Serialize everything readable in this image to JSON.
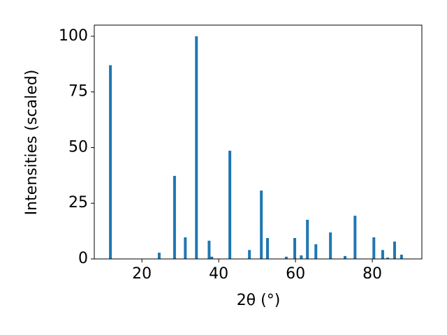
{
  "chart_data": {
    "type": "bar",
    "xlabel": "2θ (°)",
    "ylabel": "Intensities (scaled)",
    "x": [
      11.8,
      24.5,
      28.5,
      31.3,
      34.2,
      37.5,
      38.2,
      42.9,
      48.0,
      51.1,
      52.7,
      57.6,
      59.8,
      61.5,
      63.1,
      65.3,
      69.1,
      72.9,
      75.5,
      80.4,
      82.7,
      84.0,
      85.8,
      87.6
    ],
    "values": [
      87,
      2.8,
      37.3,
      9.7,
      100,
      8.2,
      1,
      48.6,
      4,
      30.7,
      9.4,
      1,
      9.4,
      1.6,
      17.6,
      6.6,
      11.9,
      1.3,
      19.4,
      9.7,
      4,
      0.6,
      7.8,
      1.9
    ],
    "color": "#1f77b4",
    "xlim": [
      7.6,
      92.9
    ],
    "xticks": [
      20,
      40,
      60,
      80
    ],
    "ylim": [
      0,
      105
    ],
    "yticks": [
      0,
      25,
      50,
      75,
      100
    ],
    "grid": false
  }
}
